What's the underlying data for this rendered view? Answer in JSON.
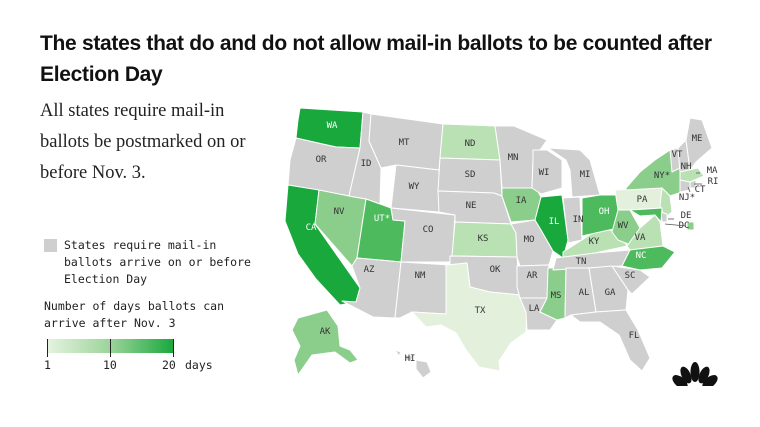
{
  "title": "The states that do and do not allow mail-in ballots to be counted after Election Day",
  "subtitle": "All states require mail-in ballots be postmarked on or before Nov. 3.",
  "legend": {
    "category_label": "States require mail-in ballots arrive on or before Election Day",
    "category_color": "#cfcfcf",
    "scale_title": "Number of days ballots can arrive after Nov. 3",
    "scale_ticks": [
      "1",
      "10",
      "20"
    ],
    "scale_unit": "days",
    "scale_colors": [
      "#e6f3df",
      "#9bd49a",
      "#18a83c"
    ]
  },
  "colors": {
    "none": "#cfcfcf",
    "level1": "#e3f1dc",
    "level2": "#b9e1b3",
    "level3": "#8bce8c",
    "level4": "#4dba5e",
    "level5": "#18a83c"
  },
  "states": [
    {
      "code": "WA",
      "label": "WA",
      "level": "level5"
    },
    {
      "code": "OR",
      "label": "OR",
      "level": "none"
    },
    {
      "code": "CA",
      "label": "CA",
      "level": "level5"
    },
    {
      "code": "NV",
      "label": "NV",
      "level": "level3"
    },
    {
      "code": "ID",
      "label": "ID",
      "level": "none"
    },
    {
      "code": "MT",
      "label": "MT",
      "level": "none"
    },
    {
      "code": "WY",
      "label": "WY",
      "level": "none"
    },
    {
      "code": "UT",
      "label": "UT*",
      "level": "level4"
    },
    {
      "code": "AZ",
      "label": "AZ",
      "level": "none"
    },
    {
      "code": "CO",
      "label": "CO",
      "level": "none"
    },
    {
      "code": "NM",
      "label": "NM",
      "level": "none"
    },
    {
      "code": "ND",
      "label": "ND",
      "level": "level2"
    },
    {
      "code": "SD",
      "label": "SD",
      "level": "none"
    },
    {
      "code": "NE",
      "label": "NE",
      "level": "none"
    },
    {
      "code": "KS",
      "label": "KS",
      "level": "level2"
    },
    {
      "code": "OK",
      "label": "OK",
      "level": "none"
    },
    {
      "code": "TX",
      "label": "TX",
      "level": "level1"
    },
    {
      "code": "MN",
      "label": "MN",
      "level": "none"
    },
    {
      "code": "IA",
      "label": "IA",
      "level": "level3"
    },
    {
      "code": "MO",
      "label": "MO",
      "level": "none"
    },
    {
      "code": "AR",
      "label": "AR",
      "level": "none"
    },
    {
      "code": "LA",
      "label": "LA",
      "level": "none"
    },
    {
      "code": "WI",
      "label": "WI",
      "level": "none"
    },
    {
      "code": "IL",
      "label": "IL",
      "level": "level5"
    },
    {
      "code": "MS",
      "label": "MS",
      "level": "level3"
    },
    {
      "code": "MI",
      "label": "MI",
      "level": "none"
    },
    {
      "code": "IN",
      "label": "IN",
      "level": "none"
    },
    {
      "code": "KY",
      "label": "KY",
      "level": "level2"
    },
    {
      "code": "TN",
      "label": "TN",
      "level": "none"
    },
    {
      "code": "AL",
      "label": "AL",
      "level": "none"
    },
    {
      "code": "GA",
      "label": "GA",
      "level": "none"
    },
    {
      "code": "FL",
      "label": "FL",
      "level": "none"
    },
    {
      "code": "OH",
      "label": "OH",
      "level": "level4"
    },
    {
      "code": "WV",
      "label": "WV",
      "level": "level3"
    },
    {
      "code": "VA",
      "label": "VA",
      "level": "level2"
    },
    {
      "code": "NC",
      "label": "NC",
      "level": "level4"
    },
    {
      "code": "SC",
      "label": "SC",
      "level": "none"
    },
    {
      "code": "PA",
      "label": "PA",
      "level": "level1"
    },
    {
      "code": "NY",
      "label": "NY*",
      "level": "level3"
    },
    {
      "code": "NJ",
      "label": "NJ*",
      "level": "level2"
    },
    {
      "code": "DE",
      "label": "DE",
      "level": "none"
    },
    {
      "code": "MD",
      "label": "",
      "level": "level4"
    },
    {
      "code": "DC",
      "label": "DC",
      "level": "level3"
    },
    {
      "code": "VT",
      "label": "VT",
      "level": "none"
    },
    {
      "code": "NH",
      "label": "NH",
      "level": "none"
    },
    {
      "code": "ME",
      "label": "ME",
      "level": "none"
    },
    {
      "code": "MA",
      "label": "MA",
      "level": "level2"
    },
    {
      "code": "RI",
      "label": "RI",
      "level": "none"
    },
    {
      "code": "CT",
      "label": "CT",
      "level": "none"
    },
    {
      "code": "AK",
      "label": "AK",
      "level": "level3"
    },
    {
      "code": "HI",
      "label": "HI",
      "level": "none"
    }
  ]
}
